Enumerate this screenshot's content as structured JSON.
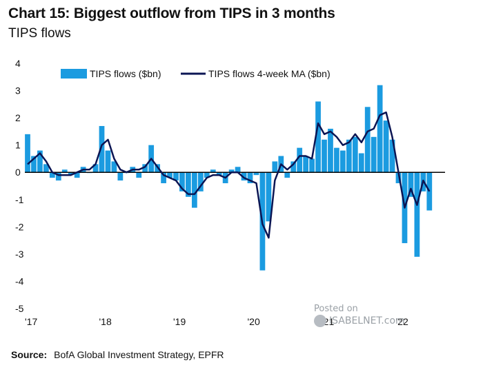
{
  "header": {
    "title": "Chart 15: Biggest outflow from TIPS in 3 months",
    "subtitle": "TIPS flows"
  },
  "footer": {
    "source_label": "Source:",
    "source_text": "BofA Global Investment Strategy, EPFR"
  },
  "watermark": {
    "line1": "Posted on",
    "line2": "ISABELNET.com"
  },
  "colors": {
    "bars": "#1b9be0",
    "ma_line": "#0b1553",
    "zero_line": "#000000"
  },
  "chart_data": {
    "type": "bar",
    "title": "Chart 15: Biggest outflow from TIPS in 3 months",
    "subtitle": "TIPS flows",
    "xlabel": "",
    "ylabel": "",
    "ylim": [
      -5,
      4
    ],
    "y_ticks": [
      4,
      3,
      2,
      1,
      0,
      -1,
      -2,
      -3,
      -4,
      -5
    ],
    "x_ticks": [
      "'17",
      "'18",
      "'19",
      "'20",
      "'21",
      "'22"
    ],
    "legend_position": "top",
    "grid": false,
    "series": [
      {
        "name": "TIPS flows ($bn)",
        "kind": "bar",
        "x": [
          "2017-01",
          "2017-02",
          "2017-03",
          "2017-04",
          "2017-05",
          "2017-06",
          "2017-07",
          "2017-08",
          "2017-09",
          "2017-10",
          "2017-11",
          "2017-12",
          "2018-01",
          "2018-02",
          "2018-03",
          "2018-04",
          "2018-05",
          "2018-06",
          "2018-07",
          "2018-08",
          "2018-09",
          "2018-10",
          "2018-11",
          "2018-12",
          "2019-01",
          "2019-02",
          "2019-03",
          "2019-04",
          "2019-05",
          "2019-06",
          "2019-07",
          "2019-08",
          "2019-09",
          "2019-10",
          "2019-11",
          "2019-12",
          "2020-01",
          "2020-02",
          "2020-03",
          "2020-04",
          "2020-05",
          "2020-06",
          "2020-07",
          "2020-08",
          "2020-09",
          "2020-10",
          "2020-11",
          "2020-12",
          "2021-01",
          "2021-02",
          "2021-03",
          "2021-04",
          "2021-05",
          "2021-06",
          "2021-07",
          "2021-08",
          "2021-09",
          "2021-10",
          "2021-11",
          "2021-12",
          "2022-01",
          "2022-02",
          "2022-03",
          "2022-04",
          "2022-05",
          "2022-06"
        ],
        "values": [
          1.4,
          0.6,
          0.8,
          0.3,
          -0.2,
          -0.3,
          0.1,
          -0.1,
          -0.2,
          0.2,
          0.0,
          0.3,
          1.7,
          0.8,
          0.4,
          -0.3,
          0.0,
          0.2,
          -0.2,
          0.3,
          1.0,
          0.3,
          -0.4,
          -0.2,
          -0.3,
          -0.7,
          -0.9,
          -1.3,
          -0.7,
          -0.2,
          0.1,
          -0.1,
          -0.4,
          0.1,
          0.2,
          -0.3,
          -0.4,
          -0.1,
          -3.6,
          -1.8,
          0.4,
          0.6,
          -0.2,
          0.4,
          0.9,
          0.6,
          0.5,
          2.6,
          1.2,
          1.6,
          0.9,
          0.8,
          1.2,
          1.3,
          0.7,
          2.4,
          1.3,
          3.2,
          1.9,
          1.2,
          -0.4,
          -2.6,
          -0.9,
          -3.1,
          -0.7,
          -1.4
        ]
      },
      {
        "name": "TIPS flows 4-week MA ($bn)",
        "kind": "line",
        "x": [
          "2017-01",
          "2017-02",
          "2017-03",
          "2017-04",
          "2017-05",
          "2017-06",
          "2017-07",
          "2017-08",
          "2017-09",
          "2017-10",
          "2017-11",
          "2017-12",
          "2018-01",
          "2018-02",
          "2018-03",
          "2018-04",
          "2018-05",
          "2018-06",
          "2018-07",
          "2018-08",
          "2018-09",
          "2018-10",
          "2018-11",
          "2018-12",
          "2019-01",
          "2019-02",
          "2019-03",
          "2019-04",
          "2019-05",
          "2019-06",
          "2019-07",
          "2019-08",
          "2019-09",
          "2019-10",
          "2019-11",
          "2019-12",
          "2020-01",
          "2020-02",
          "2020-03",
          "2020-04",
          "2020-05",
          "2020-06",
          "2020-07",
          "2020-08",
          "2020-09",
          "2020-10",
          "2020-11",
          "2020-12",
          "2021-01",
          "2021-02",
          "2021-03",
          "2021-04",
          "2021-05",
          "2021-06",
          "2021-07",
          "2021-08",
          "2021-09",
          "2021-10",
          "2021-11",
          "2021-12",
          "2022-01",
          "2022-02",
          "2022-03",
          "2022-04",
          "2022-05",
          "2022-06"
        ],
        "values": [
          0.3,
          0.5,
          0.7,
          0.4,
          0.0,
          -0.1,
          -0.1,
          -0.1,
          0.0,
          0.1,
          0.1,
          0.3,
          1.0,
          1.2,
          0.5,
          0.1,
          0.0,
          0.1,
          0.1,
          0.2,
          0.5,
          0.2,
          -0.1,
          -0.2,
          -0.3,
          -0.6,
          -0.8,
          -0.8,
          -0.5,
          -0.2,
          -0.1,
          -0.1,
          -0.2,
          0.0,
          0.0,
          -0.2,
          -0.3,
          -0.4,
          -1.9,
          -2.4,
          -0.3,
          0.3,
          0.1,
          0.3,
          0.6,
          0.6,
          0.5,
          1.8,
          1.4,
          1.5,
          1.3,
          1.0,
          1.1,
          1.4,
          1.1,
          1.5,
          1.6,
          2.1,
          2.2,
          1.3,
          0.0,
          -1.3,
          -0.6,
          -1.2,
          -0.3,
          -0.7
        ]
      }
    ]
  }
}
